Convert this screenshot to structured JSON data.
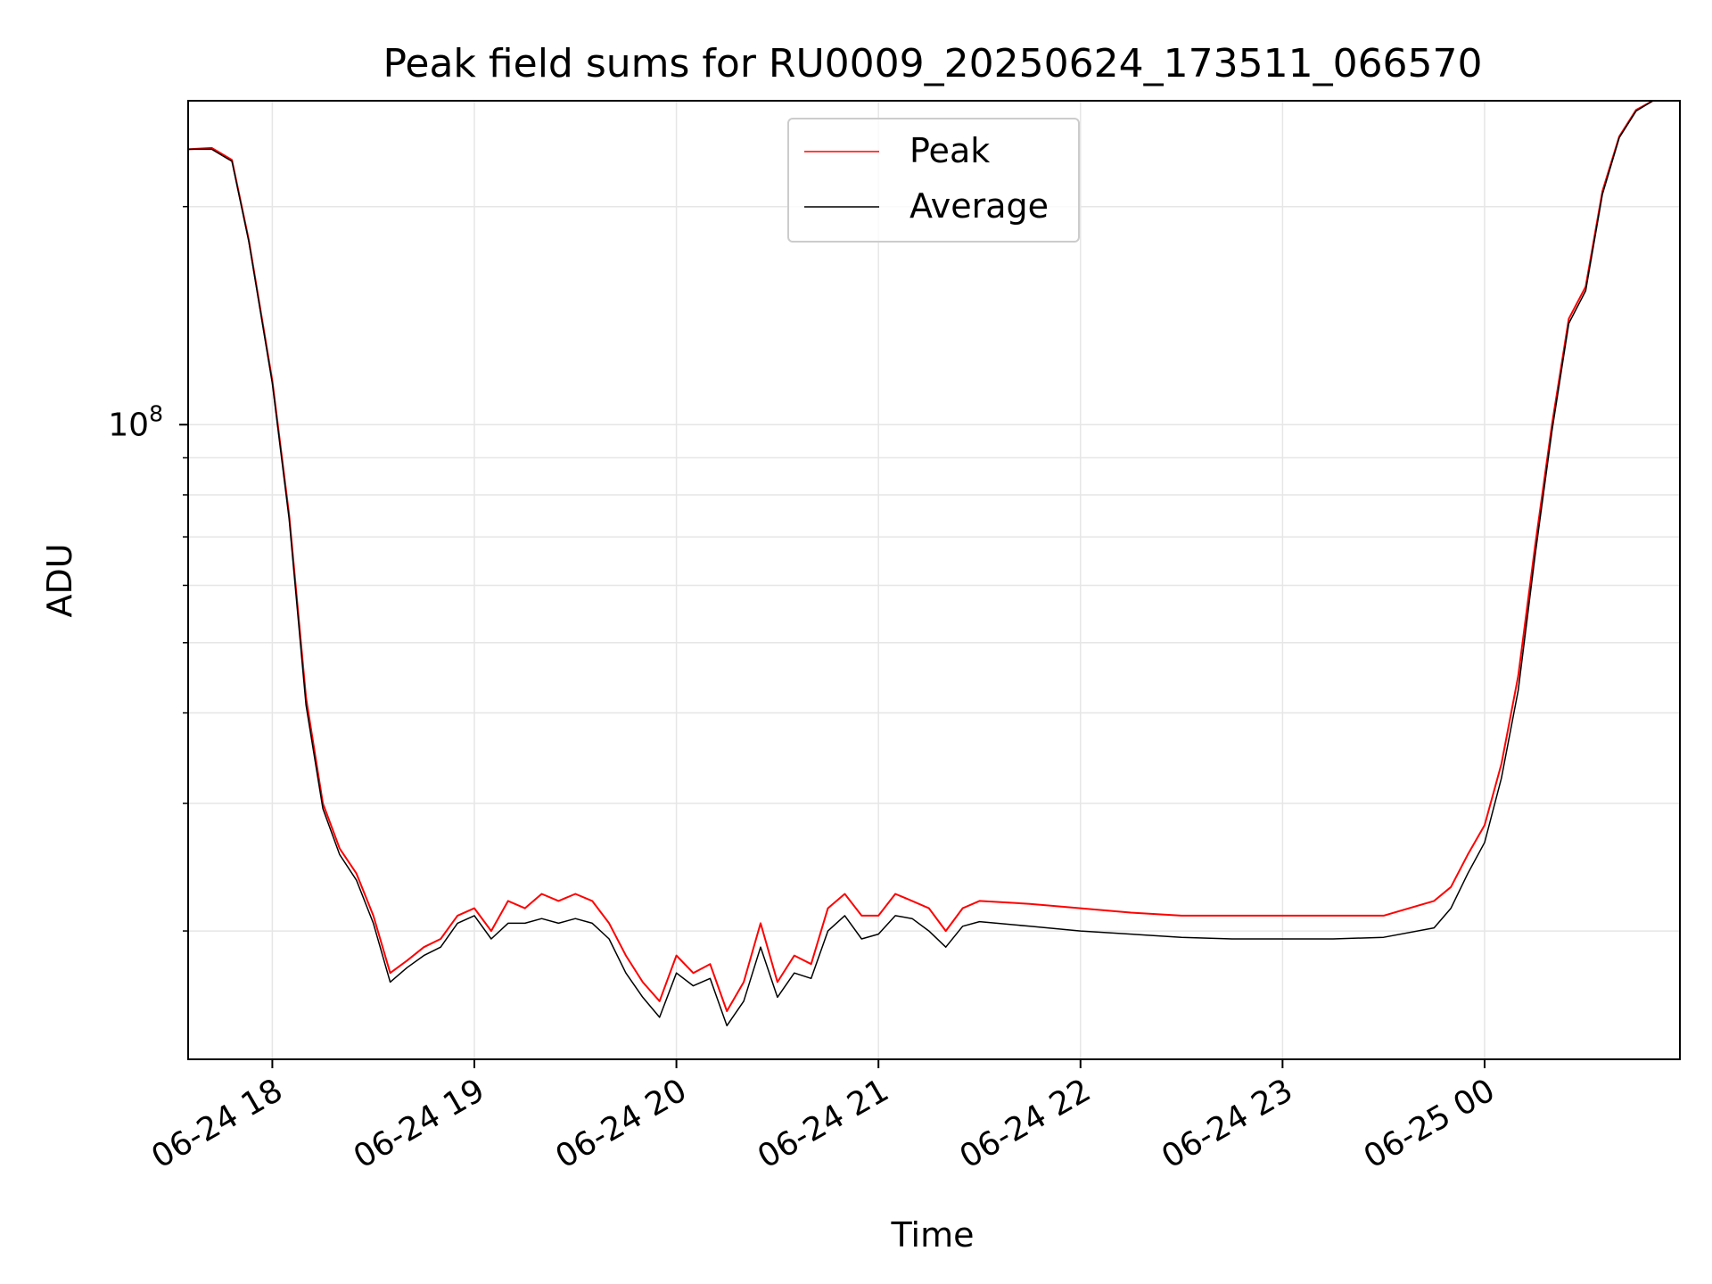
{
  "chart_data": {
    "type": "line",
    "title": "Peak field sums for RU0009_20250624_173511_066570",
    "xlabel": "Time",
    "ylabel": "ADU",
    "y_scale": "log",
    "ylim": [
      13300000,
      280000000
    ],
    "xlim": [
      "2025-06-24 17:35",
      "2025-06-25 00:58"
    ],
    "grid": true,
    "legend_position": "top-center",
    "x_ticks": [
      {
        "t": "2025-06-24 18:00",
        "label": "06-24 18"
      },
      {
        "t": "2025-06-24 19:00",
        "label": "06-24 19"
      },
      {
        "t": "2025-06-24 20:00",
        "label": "06-24 20"
      },
      {
        "t": "2025-06-24 21:00",
        "label": "06-24 21"
      },
      {
        "t": "2025-06-24 22:00",
        "label": "06-24 22"
      },
      {
        "t": "2025-06-24 23:00",
        "label": "06-24 23"
      },
      {
        "t": "2025-06-25 00:00",
        "label": "06-25 00"
      }
    ],
    "y_major_ticks": [
      {
        "value": 100000000,
        "label_base": "10",
        "label_exp": "8"
      }
    ],
    "y_minor_ticks": [
      20000000,
      30000000,
      40000000,
      50000000,
      60000000,
      70000000,
      80000000,
      90000000,
      200000000
    ],
    "series": [
      {
        "name": "Peak",
        "color": "#ff0000",
        "points": [
          [
            "2025-06-24 17:35",
            240000000
          ],
          [
            "2025-06-24 17:42",
            241000000
          ],
          [
            "2025-06-24 17:48",
            232000000
          ],
          [
            "2025-06-24 17:53",
            180000000
          ],
          [
            "2025-06-24 18:00",
            115000000
          ],
          [
            "2025-06-24 18:05",
            75000000
          ],
          [
            "2025-06-24 18:10",
            42000000
          ],
          [
            "2025-06-24 18:15",
            30000000
          ],
          [
            "2025-06-24 18:20",
            26000000
          ],
          [
            "2025-06-24 18:25",
            24000000
          ],
          [
            "2025-06-24 18:30",
            21000000
          ],
          [
            "2025-06-24 18:35",
            17500000
          ],
          [
            "2025-06-24 18:40",
            18200000
          ],
          [
            "2025-06-24 18:45",
            19000000
          ],
          [
            "2025-06-24 18:50",
            19500000
          ],
          [
            "2025-06-24 18:55",
            21000000
          ],
          [
            "2025-06-24 19:00",
            21500000
          ],
          [
            "2025-06-24 19:05",
            20000000
          ],
          [
            "2025-06-24 19:10",
            22000000
          ],
          [
            "2025-06-24 19:15",
            21500000
          ],
          [
            "2025-06-24 19:20",
            22500000
          ],
          [
            "2025-06-24 19:25",
            22000000
          ],
          [
            "2025-06-24 19:30",
            22500000
          ],
          [
            "2025-06-24 19:35",
            22000000
          ],
          [
            "2025-06-24 19:40",
            20500000
          ],
          [
            "2025-06-24 19:45",
            18500000
          ],
          [
            "2025-06-24 19:50",
            17000000
          ],
          [
            "2025-06-24 19:55",
            16000000
          ],
          [
            "2025-06-24 20:00",
            18500000
          ],
          [
            "2025-06-24 20:05",
            17500000
          ],
          [
            "2025-06-24 20:10",
            18000000
          ],
          [
            "2025-06-24 20:15",
            15500000
          ],
          [
            "2025-06-24 20:20",
            17000000
          ],
          [
            "2025-06-24 20:25",
            20500000
          ],
          [
            "2025-06-24 20:30",
            17000000
          ],
          [
            "2025-06-24 20:35",
            18500000
          ],
          [
            "2025-06-24 20:40",
            18000000
          ],
          [
            "2025-06-24 20:45",
            21500000
          ],
          [
            "2025-06-24 20:50",
            22500000
          ],
          [
            "2025-06-24 20:55",
            21000000
          ],
          [
            "2025-06-24 21:00",
            21000000
          ],
          [
            "2025-06-24 21:05",
            22500000
          ],
          [
            "2025-06-24 21:10",
            22000000
          ],
          [
            "2025-06-24 21:15",
            21500000
          ],
          [
            "2025-06-24 21:20",
            20000000
          ],
          [
            "2025-06-24 21:25",
            21500000
          ],
          [
            "2025-06-24 21:30",
            22000000
          ],
          [
            "2025-06-24 21:45",
            21800000
          ],
          [
            "2025-06-24 22:00",
            21500000
          ],
          [
            "2025-06-24 22:15",
            21200000
          ],
          [
            "2025-06-24 22:30",
            21000000
          ],
          [
            "2025-06-24 22:45",
            21000000
          ],
          [
            "2025-06-24 23:00",
            21000000
          ],
          [
            "2025-06-24 23:15",
            21000000
          ],
          [
            "2025-06-24 23:30",
            21000000
          ],
          [
            "2025-06-24 23:45",
            22000000
          ],
          [
            "2025-06-24 23:50",
            23000000
          ],
          [
            "2025-06-24 23:55",
            25500000
          ],
          [
            "2025-06-25 00:00",
            28000000
          ],
          [
            "2025-06-25 00:05",
            34000000
          ],
          [
            "2025-06-25 00:10",
            45000000
          ],
          [
            "2025-06-25 00:15",
            68000000
          ],
          [
            "2025-06-25 00:20",
            100000000
          ],
          [
            "2025-06-25 00:25",
            140000000
          ],
          [
            "2025-06-25 00:30",
            155000000
          ],
          [
            "2025-06-25 00:35",
            210000000
          ],
          [
            "2025-06-25 00:40",
            250000000
          ],
          [
            "2025-06-25 00:45",
            272000000
          ],
          [
            "2025-06-25 00:50",
            280000000
          ],
          [
            "2025-06-25 00:58",
            280000000
          ]
        ]
      },
      {
        "name": "Average",
        "color": "#000000",
        "points": [
          [
            "2025-06-24 17:35",
            240000000
          ],
          [
            "2025-06-24 17:42",
            240000000
          ],
          [
            "2025-06-24 17:48",
            231000000
          ],
          [
            "2025-06-24 17:53",
            179000000
          ],
          [
            "2025-06-24 18:00",
            114000000
          ],
          [
            "2025-06-24 18:05",
            74000000
          ],
          [
            "2025-06-24 18:10",
            41000000
          ],
          [
            "2025-06-24 18:15",
            29500000
          ],
          [
            "2025-06-24 18:20",
            25500000
          ],
          [
            "2025-06-24 18:25",
            23500000
          ],
          [
            "2025-06-24 18:30",
            20500000
          ],
          [
            "2025-06-24 18:35",
            17000000
          ],
          [
            "2025-06-24 18:40",
            17800000
          ],
          [
            "2025-06-24 18:45",
            18500000
          ],
          [
            "2025-06-24 18:50",
            19000000
          ],
          [
            "2025-06-24 18:55",
            20500000
          ],
          [
            "2025-06-24 19:00",
            21000000
          ],
          [
            "2025-06-24 19:05",
            19500000
          ],
          [
            "2025-06-24 19:10",
            20500000
          ],
          [
            "2025-06-24 19:15",
            20500000
          ],
          [
            "2025-06-24 19:20",
            20800000
          ],
          [
            "2025-06-24 19:25",
            20500000
          ],
          [
            "2025-06-24 19:30",
            20800000
          ],
          [
            "2025-06-24 19:35",
            20500000
          ],
          [
            "2025-06-24 19:40",
            19500000
          ],
          [
            "2025-06-24 19:45",
            17500000
          ],
          [
            "2025-06-24 19:50",
            16200000
          ],
          [
            "2025-06-24 19:55",
            15200000
          ],
          [
            "2025-06-24 20:00",
            17500000
          ],
          [
            "2025-06-24 20:05",
            16800000
          ],
          [
            "2025-06-24 20:10",
            17200000
          ],
          [
            "2025-06-24 20:15",
            14800000
          ],
          [
            "2025-06-24 20:20",
            16000000
          ],
          [
            "2025-06-24 20:25",
            19000000
          ],
          [
            "2025-06-24 20:30",
            16200000
          ],
          [
            "2025-06-24 20:35",
            17500000
          ],
          [
            "2025-06-24 20:40",
            17200000
          ],
          [
            "2025-06-24 20:45",
            20000000
          ],
          [
            "2025-06-24 20:50",
            21000000
          ],
          [
            "2025-06-24 20:55",
            19500000
          ],
          [
            "2025-06-24 21:00",
            19800000
          ],
          [
            "2025-06-24 21:05",
            21000000
          ],
          [
            "2025-06-24 21:10",
            20800000
          ],
          [
            "2025-06-24 21:15",
            20000000
          ],
          [
            "2025-06-24 21:20",
            19000000
          ],
          [
            "2025-06-24 21:25",
            20300000
          ],
          [
            "2025-06-24 21:30",
            20600000
          ],
          [
            "2025-06-24 21:45",
            20300000
          ],
          [
            "2025-06-24 22:00",
            20000000
          ],
          [
            "2025-06-24 22:15",
            19800000
          ],
          [
            "2025-06-24 22:30",
            19600000
          ],
          [
            "2025-06-24 22:45",
            19500000
          ],
          [
            "2025-06-24 23:00",
            19500000
          ],
          [
            "2025-06-24 23:15",
            19500000
          ],
          [
            "2025-06-24 23:30",
            19600000
          ],
          [
            "2025-06-24 23:45",
            20200000
          ],
          [
            "2025-06-24 23:50",
            21500000
          ],
          [
            "2025-06-24 23:55",
            24000000
          ],
          [
            "2025-06-25 00:00",
            26500000
          ],
          [
            "2025-06-25 00:05",
            32500000
          ],
          [
            "2025-06-25 00:10",
            43000000
          ],
          [
            "2025-06-25 00:15",
            66000000
          ],
          [
            "2025-06-25 00:20",
            98000000
          ],
          [
            "2025-06-25 00:25",
            138000000
          ],
          [
            "2025-06-25 00:30",
            153000000
          ],
          [
            "2025-06-25 00:35",
            208000000
          ],
          [
            "2025-06-25 00:40",
            249000000
          ],
          [
            "2025-06-25 00:45",
            271000000
          ],
          [
            "2025-06-25 00:50",
            280000000
          ],
          [
            "2025-06-25 00:58",
            280000000
          ]
        ]
      }
    ]
  }
}
